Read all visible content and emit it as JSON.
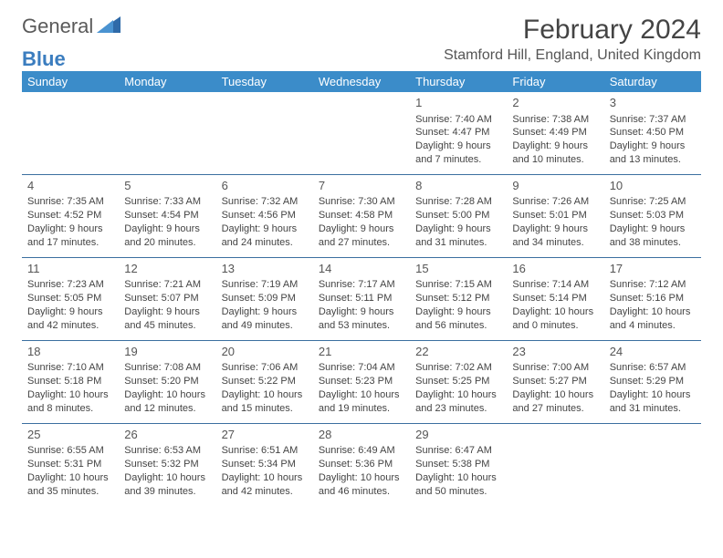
{
  "logo": {
    "text1": "General",
    "text2": "Blue"
  },
  "title": "February 2024",
  "location": "Stamford Hill, England, United Kingdom",
  "colors": {
    "header_bg": "#3b8cc9",
    "header_text": "#ffffff",
    "border": "#3b6fa0",
    "body_text": "#444444",
    "logo_gray": "#5a5a5a",
    "logo_blue": "#3b7dbf"
  },
  "weekdays": [
    "Sunday",
    "Monday",
    "Tuesday",
    "Wednesday",
    "Thursday",
    "Friday",
    "Saturday"
  ],
  "weeks": [
    [
      null,
      null,
      null,
      null,
      {
        "n": "1",
        "sr": "Sunrise: 7:40 AM",
        "ss": "Sunset: 4:47 PM",
        "dl": "Daylight: 9 hours and 7 minutes."
      },
      {
        "n": "2",
        "sr": "Sunrise: 7:38 AM",
        "ss": "Sunset: 4:49 PM",
        "dl": "Daylight: 9 hours and 10 minutes."
      },
      {
        "n": "3",
        "sr": "Sunrise: 7:37 AM",
        "ss": "Sunset: 4:50 PM",
        "dl": "Daylight: 9 hours and 13 minutes."
      }
    ],
    [
      {
        "n": "4",
        "sr": "Sunrise: 7:35 AM",
        "ss": "Sunset: 4:52 PM",
        "dl": "Daylight: 9 hours and 17 minutes."
      },
      {
        "n": "5",
        "sr": "Sunrise: 7:33 AM",
        "ss": "Sunset: 4:54 PM",
        "dl": "Daylight: 9 hours and 20 minutes."
      },
      {
        "n": "6",
        "sr": "Sunrise: 7:32 AM",
        "ss": "Sunset: 4:56 PM",
        "dl": "Daylight: 9 hours and 24 minutes."
      },
      {
        "n": "7",
        "sr": "Sunrise: 7:30 AM",
        "ss": "Sunset: 4:58 PM",
        "dl": "Daylight: 9 hours and 27 minutes."
      },
      {
        "n": "8",
        "sr": "Sunrise: 7:28 AM",
        "ss": "Sunset: 5:00 PM",
        "dl": "Daylight: 9 hours and 31 minutes."
      },
      {
        "n": "9",
        "sr": "Sunrise: 7:26 AM",
        "ss": "Sunset: 5:01 PM",
        "dl": "Daylight: 9 hours and 34 minutes."
      },
      {
        "n": "10",
        "sr": "Sunrise: 7:25 AM",
        "ss": "Sunset: 5:03 PM",
        "dl": "Daylight: 9 hours and 38 minutes."
      }
    ],
    [
      {
        "n": "11",
        "sr": "Sunrise: 7:23 AM",
        "ss": "Sunset: 5:05 PM",
        "dl": "Daylight: 9 hours and 42 minutes."
      },
      {
        "n": "12",
        "sr": "Sunrise: 7:21 AM",
        "ss": "Sunset: 5:07 PM",
        "dl": "Daylight: 9 hours and 45 minutes."
      },
      {
        "n": "13",
        "sr": "Sunrise: 7:19 AM",
        "ss": "Sunset: 5:09 PM",
        "dl": "Daylight: 9 hours and 49 minutes."
      },
      {
        "n": "14",
        "sr": "Sunrise: 7:17 AM",
        "ss": "Sunset: 5:11 PM",
        "dl": "Daylight: 9 hours and 53 minutes."
      },
      {
        "n": "15",
        "sr": "Sunrise: 7:15 AM",
        "ss": "Sunset: 5:12 PM",
        "dl": "Daylight: 9 hours and 56 minutes."
      },
      {
        "n": "16",
        "sr": "Sunrise: 7:14 AM",
        "ss": "Sunset: 5:14 PM",
        "dl": "Daylight: 10 hours and 0 minutes."
      },
      {
        "n": "17",
        "sr": "Sunrise: 7:12 AM",
        "ss": "Sunset: 5:16 PM",
        "dl": "Daylight: 10 hours and 4 minutes."
      }
    ],
    [
      {
        "n": "18",
        "sr": "Sunrise: 7:10 AM",
        "ss": "Sunset: 5:18 PM",
        "dl": "Daylight: 10 hours and 8 minutes."
      },
      {
        "n": "19",
        "sr": "Sunrise: 7:08 AM",
        "ss": "Sunset: 5:20 PM",
        "dl": "Daylight: 10 hours and 12 minutes."
      },
      {
        "n": "20",
        "sr": "Sunrise: 7:06 AM",
        "ss": "Sunset: 5:22 PM",
        "dl": "Daylight: 10 hours and 15 minutes."
      },
      {
        "n": "21",
        "sr": "Sunrise: 7:04 AM",
        "ss": "Sunset: 5:23 PM",
        "dl": "Daylight: 10 hours and 19 minutes."
      },
      {
        "n": "22",
        "sr": "Sunrise: 7:02 AM",
        "ss": "Sunset: 5:25 PM",
        "dl": "Daylight: 10 hours and 23 minutes."
      },
      {
        "n": "23",
        "sr": "Sunrise: 7:00 AM",
        "ss": "Sunset: 5:27 PM",
        "dl": "Daylight: 10 hours and 27 minutes."
      },
      {
        "n": "24",
        "sr": "Sunrise: 6:57 AM",
        "ss": "Sunset: 5:29 PM",
        "dl": "Daylight: 10 hours and 31 minutes."
      }
    ],
    [
      {
        "n": "25",
        "sr": "Sunrise: 6:55 AM",
        "ss": "Sunset: 5:31 PM",
        "dl": "Daylight: 10 hours and 35 minutes."
      },
      {
        "n": "26",
        "sr": "Sunrise: 6:53 AM",
        "ss": "Sunset: 5:32 PM",
        "dl": "Daylight: 10 hours and 39 minutes."
      },
      {
        "n": "27",
        "sr": "Sunrise: 6:51 AM",
        "ss": "Sunset: 5:34 PM",
        "dl": "Daylight: 10 hours and 42 minutes."
      },
      {
        "n": "28",
        "sr": "Sunrise: 6:49 AM",
        "ss": "Sunset: 5:36 PM",
        "dl": "Daylight: 10 hours and 46 minutes."
      },
      {
        "n": "29",
        "sr": "Sunrise: 6:47 AM",
        "ss": "Sunset: 5:38 PM",
        "dl": "Daylight: 10 hours and 50 minutes."
      },
      null,
      null
    ]
  ]
}
